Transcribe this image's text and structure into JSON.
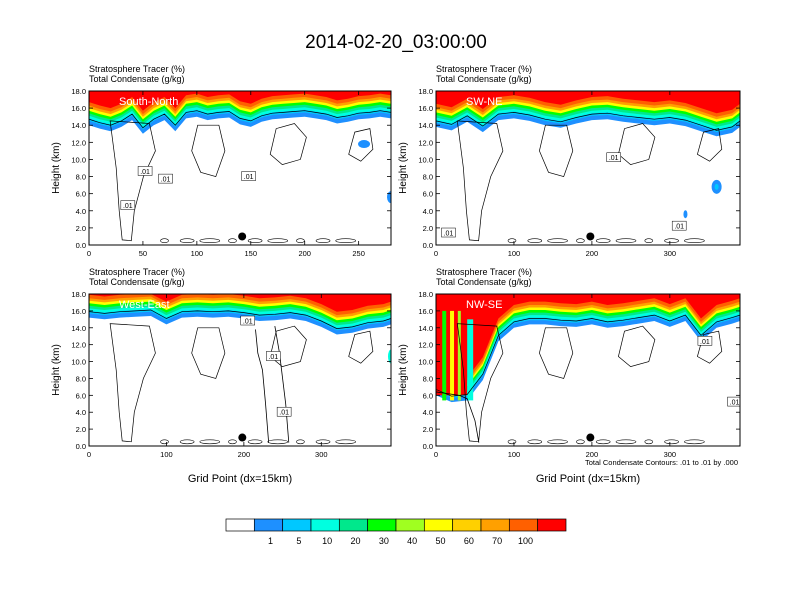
{
  "figure": {
    "title": "2014-02-20_03:00:00",
    "footnote": "Total Condensate Contours: .01 to .01 by .000"
  },
  "colorbar": {
    "levels": [
      "1",
      "5",
      "10",
      "20",
      "30",
      "40",
      "50",
      "60",
      "70",
      "100"
    ],
    "colors": [
      "#ffffff",
      "#1e90ff",
      "#00c8ff",
      "#00ffe0",
      "#00e88c",
      "#00ff00",
      "#a0ff20",
      "#ffff00",
      "#ffd000",
      "#ffa000",
      "#ff6000",
      "#ff0000"
    ]
  },
  "chart_data": [
    {
      "type": "heatmap",
      "panel_label": "South-North",
      "title_line1": "Stratosphere Tracer   (%)",
      "title_line2": "Total Condensate   (g/kg)",
      "ylabel": "Height (km)",
      "xlabel": "",
      "xlim": [
        0,
        280
      ],
      "xticks": [
        "0",
        "50",
        "100",
        "150",
        "200",
        "250"
      ],
      "xtick_values": [
        0,
        50,
        100,
        150,
        200,
        250
      ],
      "ylim": [
        0,
        18
      ],
      "yticks": [
        "0.0",
        "2.0",
        "4.0",
        "6.0",
        "8.0",
        "10.0",
        "12.0",
        "14.0",
        "16.0",
        "18.0"
      ],
      "marker_x": 142,
      "contour_labels": [
        {
          "text": ".01",
          "x": 52,
          "y": 8.6
        },
        {
          "text": ".01",
          "x": 71,
          "y": 7.7
        },
        {
          "text": ".01",
          "x": 148,
          "y": 8.0
        },
        {
          "text": ".01",
          "x": 36,
          "y": 4.6
        }
      ],
      "profile_x": [
        0,
        10,
        20,
        30,
        40,
        50,
        60,
        70,
        80,
        90,
        100,
        110,
        120,
        130,
        140,
        150,
        160,
        170,
        180,
        190,
        200,
        210,
        220,
        230,
        240,
        250,
        260,
        270,
        280
      ],
      "tracer_base_km": [
        14.2,
        13.8,
        13.5,
        14.0,
        14.8,
        13.2,
        14.2,
        14.8,
        13.5,
        15.0,
        15.2,
        14.8,
        15.0,
        15.1,
        14.3,
        14.0,
        14.6,
        14.9,
        15.0,
        15.1,
        15.2,
        15.0,
        14.8,
        14.4,
        14.6,
        14.9,
        15.0,
        15.2,
        15.0
      ]
    },
    {
      "type": "heatmap",
      "panel_label": "SW-NE",
      "title_line1": "Stratosphere Tracer   (%)",
      "title_line2": "Total Condensate   (g/kg)",
      "ylabel": "Height (km)",
      "xlabel": "",
      "xlim": [
        0,
        390
      ],
      "xticks": [
        "0",
        "100",
        "200",
        "300"
      ],
      "xtick_values": [
        0,
        100,
        200,
        300
      ],
      "ylim": [
        0,
        18
      ],
      "yticks": [
        "0.0",
        "2.0",
        "4.0",
        "6.0",
        "8.0",
        "10.0",
        "12.0",
        "14.0",
        "16.0",
        "18.0"
      ],
      "marker_x": 198,
      "contour_labels": [
        {
          "text": ".01",
          "x": 228,
          "y": 10.2
        },
        {
          "text": ".01",
          "x": 16,
          "y": 1.4
        },
        {
          "text": ".01",
          "x": 312,
          "y": 2.2
        }
      ],
      "profile_x": [
        0,
        20,
        40,
        60,
        80,
        100,
        120,
        140,
        160,
        180,
        200,
        220,
        240,
        260,
        280,
        300,
        320,
        340,
        360,
        380,
        390
      ],
      "tracer_base_km": [
        14.0,
        13.6,
        14.6,
        13.4,
        14.8,
        15.0,
        14.7,
        14.2,
        13.9,
        14.4,
        14.8,
        14.9,
        14.6,
        14.4,
        14.2,
        14.4,
        14.1,
        13.5,
        12.9,
        13.3,
        14.0
      ]
    },
    {
      "type": "heatmap",
      "panel_label": "West-East",
      "title_line1": "Stratosphere Tracer   (%)",
      "title_line2": "Total Condensate   (g/kg)",
      "ylabel": "Height (km)",
      "xlabel": "Grid Point (dx=15km)",
      "xlim": [
        0,
        390
      ],
      "xticks": [
        "0",
        "100",
        "200",
        "300"
      ],
      "xtick_values": [
        0,
        100,
        200,
        300
      ],
      "ylim": [
        0,
        18
      ],
      "yticks": [
        "0.0",
        "2.0",
        "4.0",
        "6.0",
        "8.0",
        "10.0",
        "12.0",
        "14.0",
        "16.0",
        "18.0"
      ],
      "marker_x": 198,
      "contour_labels": [
        {
          "text": ".01",
          "x": 205,
          "y": 14.8
        },
        {
          "text": ".01",
          "x": 238,
          "y": 10.6
        },
        {
          "text": ".01",
          "x": 252,
          "y": 4.0
        }
      ],
      "profile_x": [
        0,
        20,
        40,
        60,
        80,
        100,
        120,
        140,
        160,
        180,
        200,
        220,
        240,
        260,
        280,
        300,
        320,
        340,
        360,
        380,
        390
      ],
      "tracer_base_km": [
        15.4,
        15.2,
        15.4,
        15.5,
        15.6,
        14.6,
        15.4,
        15.5,
        15.4,
        15.5,
        15.3,
        15.0,
        15.1,
        15.3,
        15.0,
        14.3,
        13.4,
        13.6,
        14.1,
        14.3,
        14.6
      ]
    },
    {
      "type": "heatmap",
      "panel_label": "NW-SE",
      "title_line1": "Stratosphere Tracer   (%)",
      "title_line2": "Total Condensate   (g/kg)",
      "ylabel": "Height (km)",
      "xlabel": "Grid Point (dx=15km)",
      "xlim": [
        0,
        390
      ],
      "xticks": [
        "0",
        "100",
        "200",
        "300"
      ],
      "xtick_values": [
        0,
        100,
        200,
        300
      ],
      "ylim": [
        0,
        18
      ],
      "yticks": [
        "0.0",
        "2.0",
        "4.0",
        "6.0",
        "8.0",
        "10.0",
        "12.0",
        "14.0",
        "16.0",
        "18.0"
      ],
      "marker_x": 198,
      "contour_labels": [
        {
          "text": ".01",
          "x": 345,
          "y": 12.4
        },
        {
          "text": ".01",
          "x": 383,
          "y": 5.2
        }
      ],
      "profile_x": [
        0,
        20,
        40,
        60,
        80,
        100,
        120,
        140,
        160,
        180,
        200,
        220,
        240,
        260,
        280,
        300,
        320,
        340,
        360,
        380,
        390
      ],
      "tracer_base_km": [
        6.2,
        5.4,
        5.6,
        8.0,
        12.6,
        14.2,
        14.6,
        14.6,
        14.4,
        14.3,
        14.6,
        14.2,
        14.4,
        14.7,
        15.0,
        14.3,
        15.0,
        12.6,
        14.2,
        14.7,
        15.0
      ]
    }
  ]
}
